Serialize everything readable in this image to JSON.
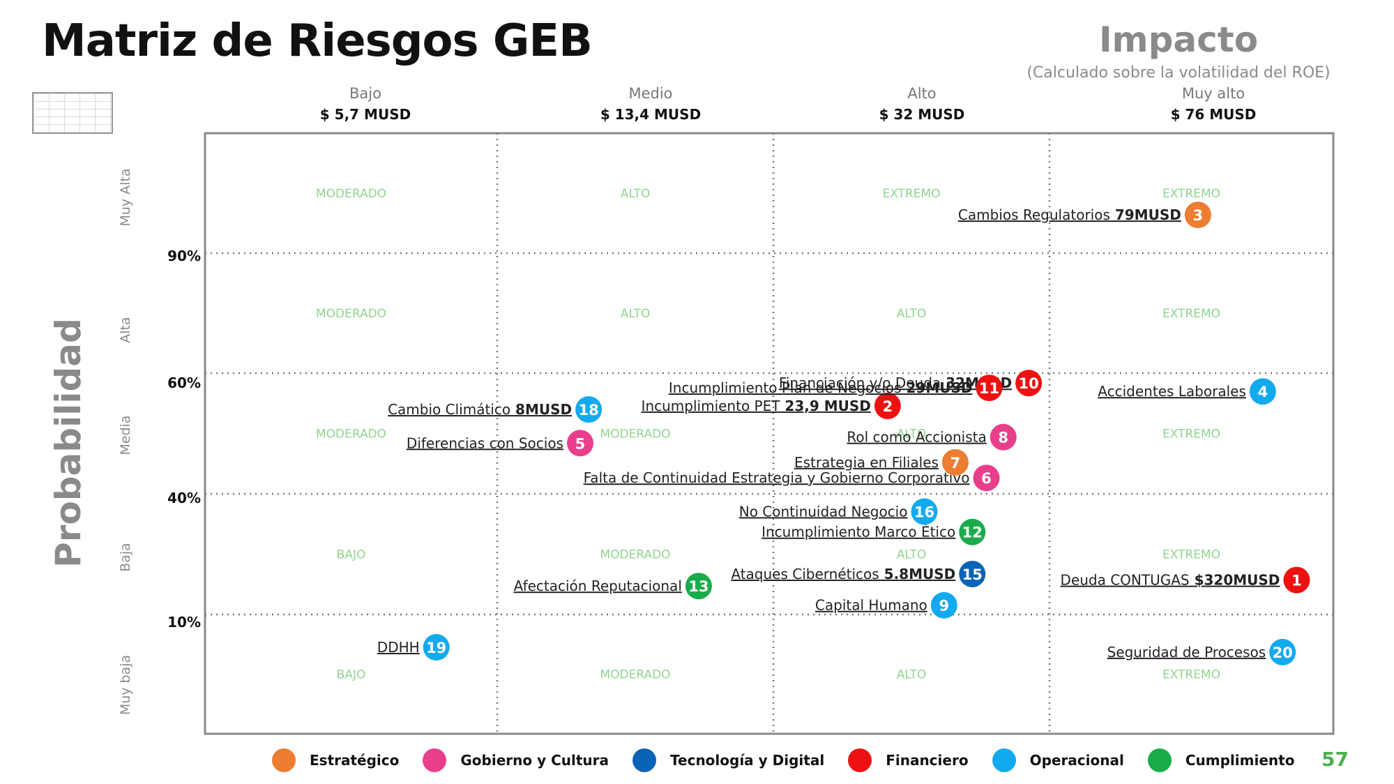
{
  "title": "Matriz de Riesgos GEB",
  "impact": {
    "title": "Impacto",
    "subtitle": "(Calculado sobre la volatilidad del ROE)",
    "columns": [
      {
        "name": "Bajo",
        "value": "$ 5,7 MUSD"
      },
      {
        "name": "Medio",
        "value": "$ 13,4 MUSD"
      },
      {
        "name": "Alto",
        "value": "$ 32 MUSD"
      },
      {
        "name": "Muy alto",
        "value": "$ 76 MUSD"
      }
    ]
  },
  "probability": {
    "title": "Probabilidad",
    "rows": [
      "Muy Alta",
      "Alta",
      "Media",
      "Baja",
      "Muy baja"
    ],
    "thresholds": [
      "90%",
      "60%",
      "40%",
      "10%"
    ]
  },
  "categories": {
    "estrategico": {
      "label": "Estratégico",
      "color": "#ed7d31"
    },
    "gobierno": {
      "label": "Gobierno y Cultura",
      "color": "#e83e8c"
    },
    "tecnologia": {
      "label": "Tecnología y Digital",
      "color": "#0b63b6"
    },
    "financiero": {
      "label": "Financiero",
      "color": "#ee1111"
    },
    "operacional": {
      "label": "Operacional",
      "color": "#12aaee"
    },
    "cumplimiento": {
      "label": "Cumplimiento",
      "color": "#1aab4b"
    }
  },
  "legend_order": [
    "estrategico",
    "gobierno",
    "tecnologia",
    "financiero",
    "operacional",
    "cumplimiento"
  ],
  "page_number": "57",
  "chart_data": {
    "type": "scatter",
    "title": "Matriz de Riesgos GEB",
    "xlabel": "Impacto",
    "ylabel": "Probabilidad",
    "x_categories": [
      "Bajo",
      "Medio",
      "Alto",
      "Muy alto"
    ],
    "y_categories": [
      "Muy baja",
      "Baja",
      "Media",
      "Alta",
      "Muy Alta"
    ],
    "zones": [
      [
        "BAJO",
        "MODERADO",
        "ALTO",
        "EXTREMO"
      ],
      [
        "BAJO",
        "MODERADO",
        "ALTO",
        "EXTREMO"
      ],
      [
        "MODERADO",
        "MODERADO",
        "ALTO",
        "EXTREMO"
      ],
      [
        "MODERADO",
        "ALTO",
        "ALTO",
        "EXTREMO"
      ],
      [
        "MODERADO",
        "ALTO",
        "EXTREMO",
        "EXTREMO"
      ]
    ],
    "risks": [
      {
        "id": "1",
        "name": "Deuda CONTUGAS",
        "amount": "$320MUSD",
        "category": "financiero",
        "x": 3.87,
        "y": 1.28
      },
      {
        "id": "2",
        "name": "Incumplimiento PET",
        "amount": "23,9 MUSD",
        "category": "financiero",
        "x": 2.42,
        "y": 2.73
      },
      {
        "id": "3",
        "name": "Cambios Regulatorios",
        "amount": "79MUSD",
        "category": "estrategico",
        "x": 3.52,
        "y": 4.32
      },
      {
        "id": "4",
        "name": "Accidentes Laborales",
        "amount": "",
        "category": "operacional",
        "x": 3.75,
        "y": 2.85
      },
      {
        "id": "5",
        "name": "Diferencias con Socios",
        "amount": "",
        "category": "gobierno",
        "x": 1.33,
        "y": 2.42
      },
      {
        "id": "6",
        "name": "Falta de Continuidad Estrategia y Gobierno Corporativo",
        "amount": "",
        "category": "gobierno",
        "x": 2.77,
        "y": 2.13
      },
      {
        "id": "7",
        "name": "Estrategia en Filiales",
        "amount": "",
        "category": "estrategico",
        "x": 2.66,
        "y": 2.26
      },
      {
        "id": "8",
        "name": "Rol como Accionista",
        "amount": "",
        "category": "gobierno",
        "x": 2.83,
        "y": 2.47
      },
      {
        "id": "9",
        "name": "Capital Humano",
        "amount": "",
        "category": "operacional",
        "x": 2.62,
        "y": 1.07
      },
      {
        "id": "10",
        "name": "Financiación y/o Deuda",
        "amount": "32MUSD",
        "category": "financiero",
        "x": 2.92,
        "y": 2.92
      },
      {
        "id": "11",
        "name": "Incumplimiento Plan de Negocios",
        "amount": "29MUSD",
        "category": "financiero",
        "x": 2.78,
        "y": 2.88
      },
      {
        "id": "12",
        "name": "Incumplimiento Marco Ético",
        "amount": "",
        "category": "cumplimiento",
        "x": 2.72,
        "y": 1.68
      },
      {
        "id": "13",
        "name": "Afectación Reputacional",
        "amount": "",
        "category": "cumplimiento",
        "x": 1.75,
        "y": 1.23
      },
      {
        "id": "15",
        "name": "Ataques Cibernéticos",
        "amount": "5.8MUSD",
        "category": "tecnologia",
        "x": 2.72,
        "y": 1.33
      },
      {
        "id": "16",
        "name": "No Continuidad Negocio",
        "amount": "",
        "category": "operacional",
        "x": 2.55,
        "y": 1.85
      },
      {
        "id": "18",
        "name": "Cambio Climático",
        "amount": "8MUSD",
        "category": "operacional",
        "x": 1.36,
        "y": 2.7
      },
      {
        "id": "19",
        "name": "DDHH",
        "amount": "",
        "category": "operacional",
        "x": 0.82,
        "y": 0.72
      },
      {
        "id": "20",
        "name": "Seguridad de Procesos",
        "amount": "",
        "category": "operacional",
        "x": 3.82,
        "y": 0.68
      }
    ]
  }
}
